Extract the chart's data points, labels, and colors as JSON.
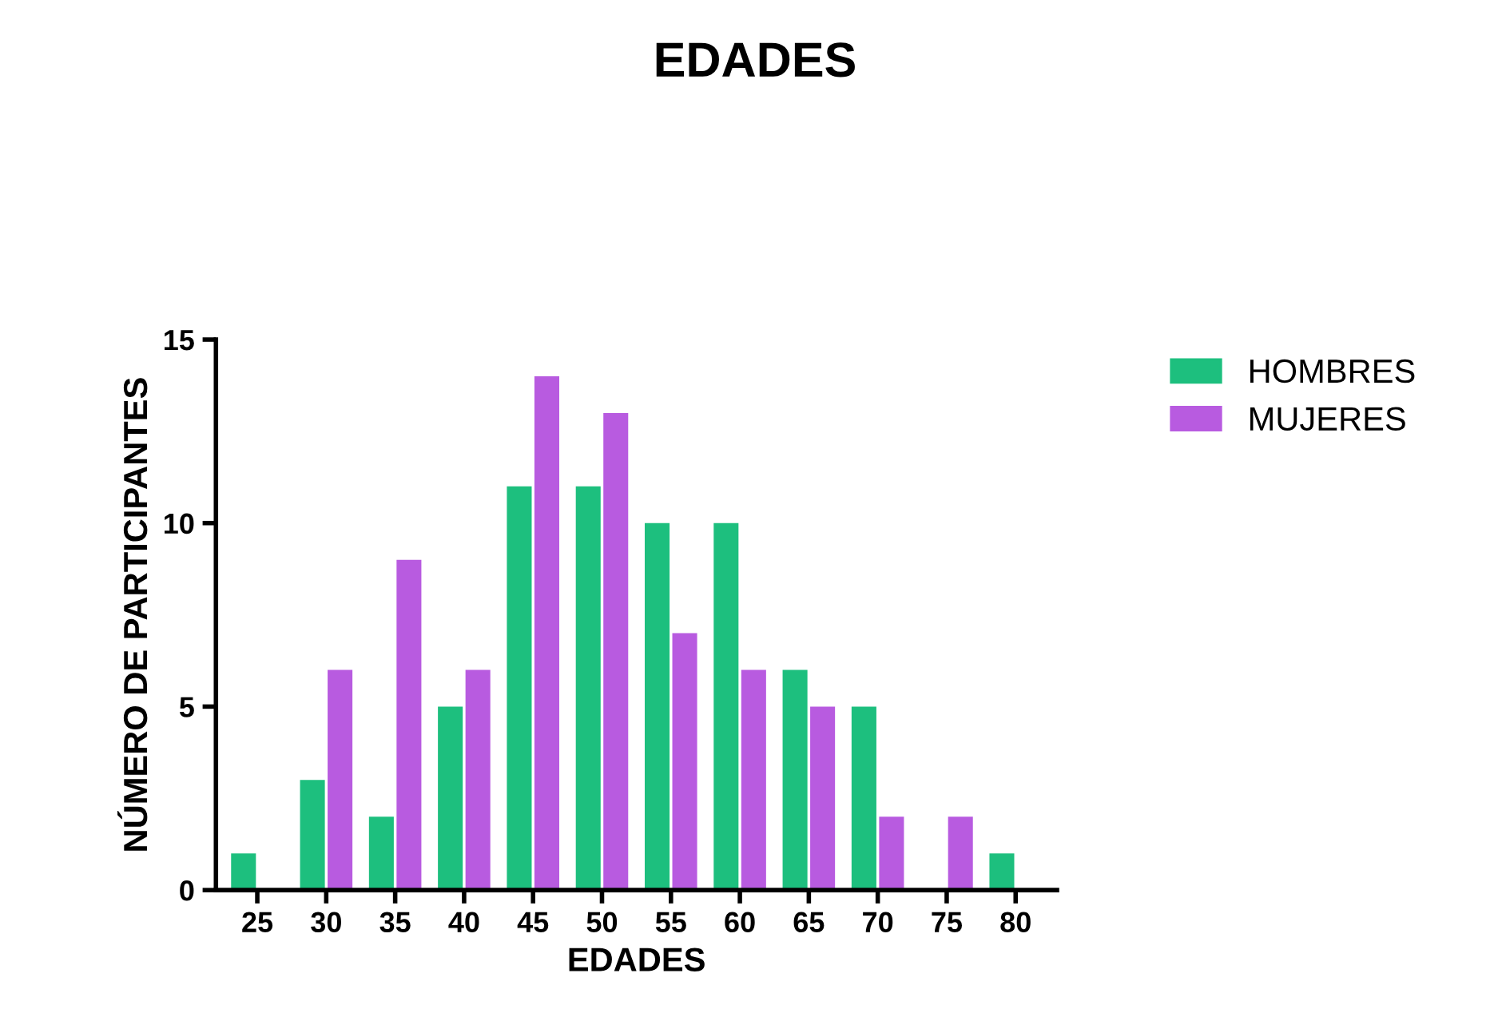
{
  "chart_data": {
    "type": "bar",
    "title": "EDADES",
    "xlabel": "EDADES",
    "ylabel": "NÚMERO DE PARTICIPANTES",
    "categories": [
      "25",
      "30",
      "35",
      "40",
      "45",
      "50",
      "55",
      "60",
      "65",
      "70",
      "75",
      "80"
    ],
    "series": [
      {
        "name": "HOMBRES",
        "color": "#1dbf7e",
        "values": [
          1,
          3,
          2,
          5,
          11,
          11,
          10,
          10,
          6,
          5,
          0,
          1
        ]
      },
      {
        "name": "MUJERES",
        "color": "#b85be0",
        "values": [
          0,
          6,
          9,
          6,
          14,
          13,
          7,
          6,
          5,
          2,
          2,
          0
        ]
      }
    ],
    "ylim": [
      0,
      15
    ],
    "yticks": [
      0,
      5,
      10,
      15
    ],
    "grid": false,
    "legend": "top right"
  }
}
